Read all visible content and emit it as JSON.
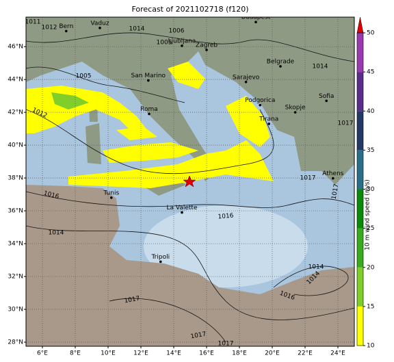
{
  "title": "Forecast of 2021102718 (f120)",
  "map": {
    "xlim": [
      5,
      25
    ],
    "ylim": [
      27.75,
      47.8
    ],
    "xticks": [
      {
        "value": 6,
        "label": "6°E"
      },
      {
        "value": 8,
        "label": "8°E"
      },
      {
        "value": 10,
        "label": "10°E"
      },
      {
        "value": 12,
        "label": "12°E"
      },
      {
        "value": 14,
        "label": "14°E"
      },
      {
        "value": 16,
        "label": "16°E"
      },
      {
        "value": 18,
        "label": "18°E"
      },
      {
        "value": 20,
        "label": "20°E"
      },
      {
        "value": 22,
        "label": "22°E"
      },
      {
        "value": 24,
        "label": "24°E"
      }
    ],
    "yticks": [
      {
        "value": 28,
        "label": "28°N"
      },
      {
        "value": 30,
        "label": "30°N"
      },
      {
        "value": 32,
        "label": "32°N"
      },
      {
        "value": 34,
        "label": "34°N"
      },
      {
        "value": 36,
        "label": "36°N"
      },
      {
        "value": 38,
        "label": "38°N"
      },
      {
        "value": 40,
        "label": "40°N"
      },
      {
        "value": 42,
        "label": "42°N"
      },
      {
        "value": 44,
        "label": "44°N"
      },
      {
        "value": 46,
        "label": "46°N"
      }
    ],
    "grid": true,
    "cities": [
      {
        "name": "Budapest",
        "lon": 19.0,
        "lat": 47.5
      },
      {
        "name": "Bern",
        "lon": 7.45,
        "lat": 46.95
      },
      {
        "name": "Vaduz",
        "lon": 9.5,
        "lat": 47.14
      },
      {
        "name": "Ljubljana",
        "lon": 14.5,
        "lat": 46.05
      },
      {
        "name": "Zagreb",
        "lon": 16.0,
        "lat": 45.8
      },
      {
        "name": "San Marino",
        "lon": 12.45,
        "lat": 43.94
      },
      {
        "name": "Sarajevo",
        "lon": 18.4,
        "lat": 43.85
      },
      {
        "name": "Belgrade",
        "lon": 20.5,
        "lat": 44.8
      },
      {
        "name": "Roma",
        "lon": 12.5,
        "lat": 41.9
      },
      {
        "name": "Podgorica",
        "lon": 19.26,
        "lat": 42.44
      },
      {
        "name": "Skopje",
        "lon": 21.4,
        "lat": 42.0
      },
      {
        "name": "Tirana",
        "lon": 19.8,
        "lat": 41.3
      },
      {
        "name": "Sofia",
        "lon": 23.3,
        "lat": 42.7
      },
      {
        "name": "Athens",
        "lon": 23.7,
        "lat": 37.98
      },
      {
        "name": "Tunis",
        "lon": 10.2,
        "lat": 36.8
      },
      {
        "name": "La Valette",
        "lon": 14.5,
        "lat": 35.9
      },
      {
        "name": "Tripoli",
        "lon": 13.2,
        "lat": 32.9
      }
    ],
    "isobar_labels": [
      "1011",
      "1012",
      "1014",
      "1005",
      "1006",
      "1005",
      "1012",
      "1014",
      "1017",
      "1017",
      "1016",
      "1017",
      "1014",
      "1016",
      "1014",
      "1014",
      "1016",
      "1017",
      "1017",
      "1017"
    ]
  },
  "colorbar": {
    "label": "10 m wind speed (m/s)",
    "lim": [
      10,
      50
    ],
    "ticks": [
      10,
      15,
      20,
      25,
      30,
      35,
      40,
      45,
      50
    ],
    "colors": [
      "#ffff00",
      "#7fce2a",
      "#3aaa1e",
      "#0a8a0a",
      "#2a6f8a",
      "#233a66",
      "#5a2d8a",
      "#9a3ab0"
    ],
    "extend_color": "#e00000"
  }
}
